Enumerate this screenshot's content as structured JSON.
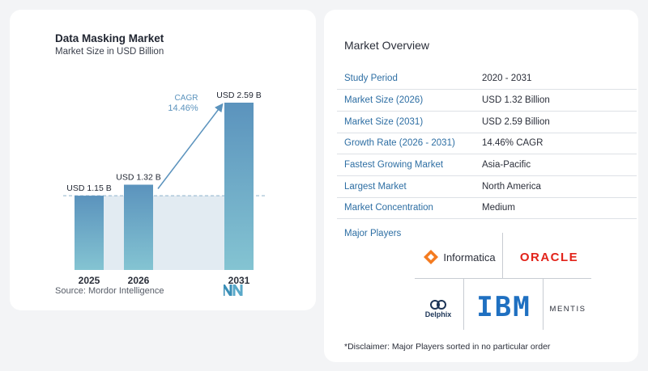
{
  "chart_data": {
    "type": "bar",
    "title": "Data Masking Market",
    "subtitle": "Market Size in USD Billion",
    "categories": [
      "2025",
      "2026",
      "2031"
    ],
    "values": [
      1.15,
      1.32,
      2.59
    ],
    "value_labels": [
      "USD 1.15 B",
      "USD 1.32 B",
      "USD 2.59 B"
    ],
    "ylim": [
      0,
      2.59
    ],
    "annotation": {
      "label": "CAGR",
      "value": "14.46%"
    },
    "source": "Source:  Mordor Intelligence",
    "colors": {
      "bar_top": "#5b93bd",
      "bar_bottom": "#84c4d2",
      "arrow": "#5b93bd",
      "band": "#e2ebf2"
    }
  },
  "overview": {
    "title": "Market Overview",
    "rows": [
      {
        "label": "Study Period",
        "value": "2020 - 2031"
      },
      {
        "label": "Market Size (2026)",
        "value": "USD 1.32 Billion"
      },
      {
        "label": "Market Size (2031)",
        "value": "USD 2.59 Billion"
      },
      {
        "label": "Growth Rate (2026 - 2031)",
        "value": "14.46% CAGR"
      },
      {
        "label": "Fastest Growing Market",
        "value": "Asia-Pacific"
      },
      {
        "label": "Largest Market",
        "value": "North America"
      },
      {
        "label": "Market Concentration",
        "value": "Medium"
      }
    ]
  },
  "players": {
    "title": "Major Players",
    "names": {
      "informatica": "Informatica",
      "oracle": "ORACLE",
      "ibm": "IBM",
      "delphix": "Delphix",
      "mentis": "MENTIS"
    },
    "icons": [
      "informatica-logo-icon",
      "delphix-logo-icon",
      "mordor-logo-icon"
    ]
  },
  "disclaimer": "*Disclaimer: Major Players sorted in no particular order"
}
